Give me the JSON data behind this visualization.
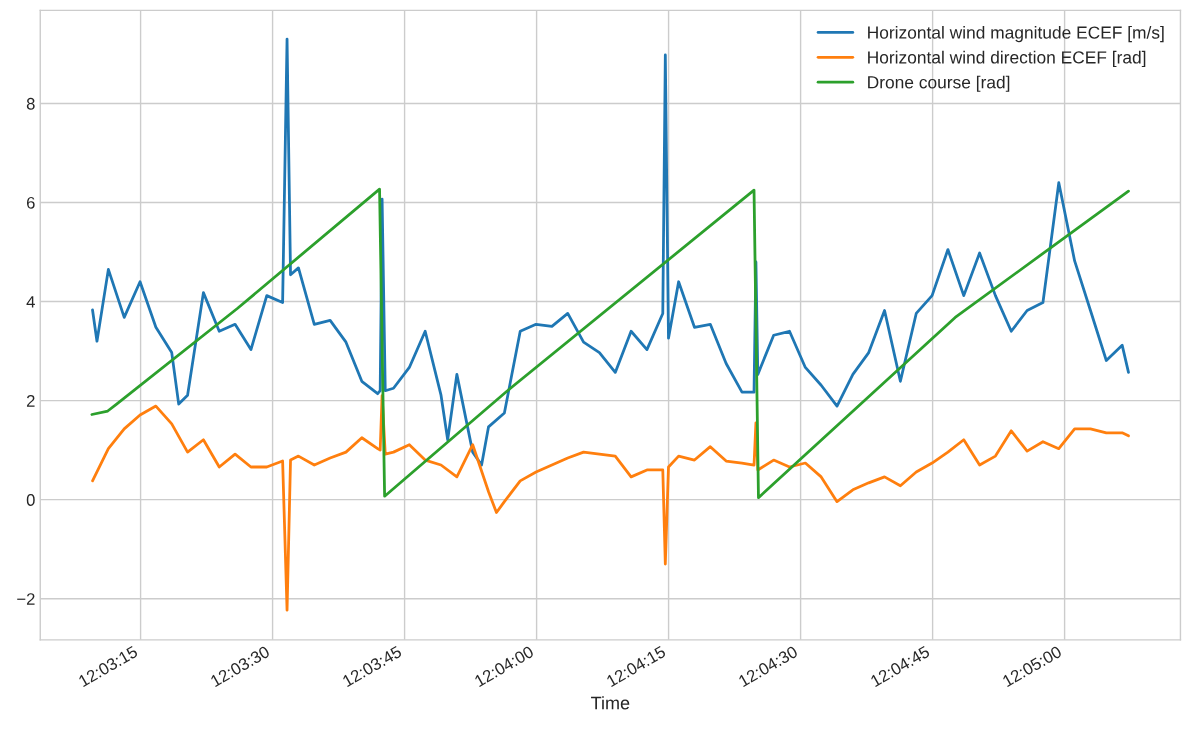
{
  "chart_data": {
    "type": "line",
    "xlabel": "Time",
    "legend": "top right",
    "grid": true,
    "xlim": [
      12.051,
      12.08699
    ],
    "ylim": [
      -2.83,
      9.88
    ],
    "xticks": [
      {
        "value": 12.054167,
        "label": "12:03:15"
      },
      {
        "value": 12.058333,
        "label": "12:03:30"
      },
      {
        "value": 12.0625,
        "label": "12:03:45"
      },
      {
        "value": 12.066667,
        "label": "12:04:00"
      },
      {
        "value": 12.070833,
        "label": "12:04:15"
      },
      {
        "value": 12.075,
        "label": "12:04:30"
      },
      {
        "value": 12.079167,
        "label": "12:04:45"
      },
      {
        "value": 12.083333,
        "label": "12:05:00"
      }
    ],
    "yticks": [
      {
        "value": -2,
        "label": "−2"
      },
      0,
      2,
      4,
      6,
      8
    ],
    "series": [
      {
        "name": "Horizontal wind magnitude ECEF [m/s]",
        "color": "#1f77b4",
        "x": [
          12.05265,
          12.05279,
          12.05315,
          12.05365,
          12.05415,
          12.05465,
          12.05515,
          12.05537,
          12.05565,
          12.05615,
          12.05665,
          12.05715,
          12.05765,
          12.05815,
          12.05865,
          12.05879,
          12.0589,
          12.05915,
          12.05965,
          12.06015,
          12.06065,
          12.06115,
          12.06165,
          12.06173,
          12.06179,
          12.06189,
          12.06215,
          12.06265,
          12.06315,
          12.06365,
          12.06386,
          12.06415,
          12.06465,
          12.06493,
          12.06515,
          12.06565,
          12.06615,
          12.06665,
          12.06715,
          12.06765,
          12.06815,
          12.06865,
          12.06915,
          12.06965,
          12.07015,
          12.07065,
          12.07073,
          12.07083,
          12.07115,
          12.07165,
          12.07215,
          12.07265,
          12.07315,
          12.07353,
          12.07359,
          12.07365,
          12.07415,
          12.07465,
          12.07515,
          12.07565,
          12.07615,
          12.07665,
          12.07715,
          12.07765,
          12.07815,
          12.07865,
          12.07915,
          12.07965,
          12.08015,
          12.08065,
          12.08115,
          12.08165,
          12.08215,
          12.08265,
          12.08315,
          12.08365,
          12.08415,
          12.08465,
          12.08515,
          12.08535
        ],
        "values": [
          3.83,
          3.2,
          4.65,
          3.68,
          4.4,
          3.48,
          2.97,
          1.93,
          2.11,
          4.18,
          3.4,
          3.54,
          3.03,
          4.12,
          3.98,
          9.3,
          4.54,
          4.68,
          3.54,
          3.62,
          3.18,
          2.39,
          2.14,
          2.2,
          6.07,
          2.2,
          2.25,
          2.67,
          3.4,
          2.11,
          1.21,
          2.53,
          0.96,
          0.7,
          1.47,
          1.75,
          3.4,
          3.54,
          3.5,
          3.76,
          3.18,
          2.97,
          2.57,
          3.4,
          3.03,
          3.76,
          8.98,
          3.26,
          4.4,
          3.48,
          3.54,
          2.75,
          2.17,
          2.17,
          4.8,
          2.53,
          3.32,
          3.4,
          2.67,
          2.31,
          1.89,
          2.53,
          2.97,
          3.82,
          2.39,
          3.76,
          4.12,
          5.05,
          4.12,
          4.98,
          4.12,
          3.4,
          3.82,
          3.98,
          6.4,
          4.82,
          3.82,
          2.81,
          3.12,
          2.57
        ]
      },
      {
        "name": "Horizontal wind direction ECEF [rad]",
        "color": "#ff7f0e",
        "x": [
          12.05265,
          12.05315,
          12.05365,
          12.05415,
          12.05465,
          12.05515,
          12.05565,
          12.05615,
          12.05665,
          12.05715,
          12.05765,
          12.05815,
          12.05865,
          12.05879,
          12.0589,
          12.05915,
          12.05965,
          12.06015,
          12.06065,
          12.06115,
          12.06165,
          12.06173,
          12.06179,
          12.06189,
          12.06215,
          12.06265,
          12.06315,
          12.06365,
          12.06415,
          12.06465,
          12.06515,
          12.0654,
          12.06565,
          12.06615,
          12.06665,
          12.06715,
          12.06765,
          12.06815,
          12.06865,
          12.06915,
          12.06965,
          12.07015,
          12.07065,
          12.07073,
          12.07083,
          12.07115,
          12.07165,
          12.07215,
          12.07265,
          12.07315,
          12.07353,
          12.07359,
          12.07365,
          12.07415,
          12.07465,
          12.07515,
          12.07565,
          12.07615,
          12.07665,
          12.07715,
          12.07765,
          12.07815,
          12.07865,
          12.07915,
          12.07965,
          12.08015,
          12.08065,
          12.08115,
          12.08165,
          12.08215,
          12.08265,
          12.08315,
          12.08365,
          12.08415,
          12.08465,
          12.08515,
          12.08535
        ],
        "values": [
          0.38,
          1.03,
          1.43,
          1.71,
          1.89,
          1.53,
          0.96,
          1.21,
          0.66,
          0.92,
          0.66,
          0.66,
          0.78,
          -2.23,
          0.8,
          0.88,
          0.7,
          0.84,
          0.96,
          1.25,
          1.03,
          1.0,
          2.1,
          0.92,
          0.96,
          1.11,
          0.8,
          0.7,
          0.46,
          1.11,
          0.16,
          -0.26,
          -0.04,
          0.38,
          0.56,
          0.7,
          0.84,
          0.96,
          0.92,
          0.88,
          0.46,
          0.6,
          0.6,
          -1.3,
          0.66,
          0.88,
          0.8,
          1.07,
          0.78,
          0.74,
          0.7,
          1.55,
          0.6,
          0.8,
          0.66,
          0.74,
          0.46,
          -0.04,
          0.2,
          0.34,
          0.46,
          0.28,
          0.56,
          0.74,
          0.96,
          1.21,
          0.7,
          0.88,
          1.39,
          0.98,
          1.17,
          1.03,
          1.43,
          1.43,
          1.35,
          1.35,
          1.29
        ]
      },
      {
        "name": "Drone course [rad]",
        "color": "#2ca02c",
        "x": [
          12.05263,
          12.05313,
          12.05341,
          12.05722,
          12.06171,
          12.06187,
          12.06571,
          12.07353,
          12.07367,
          12.07988,
          12.08535
        ],
        "values": [
          1.72,
          1.79,
          1.93,
          3.86,
          6.27,
          0.07,
          2.18,
          6.25,
          0.04,
          3.68,
          6.23
        ]
      }
    ]
  }
}
